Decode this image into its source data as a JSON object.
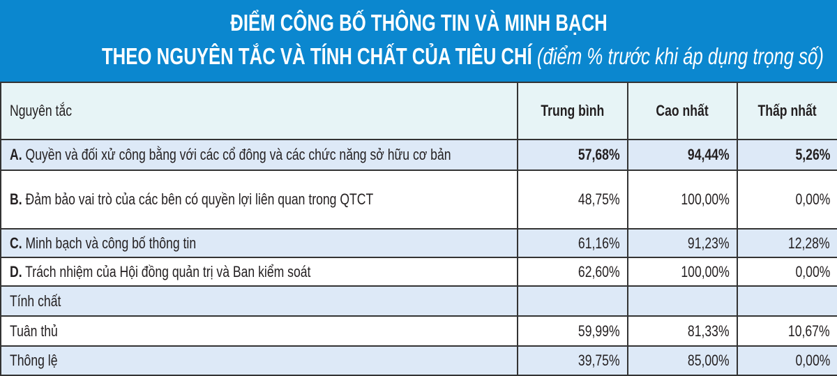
{
  "title": {
    "line1": "ĐIỂM CÔNG BỐ THÔNG TIN VÀ MINH BẠCH",
    "line2": "THEO NGUYÊN TẮC VÀ TÍNH CHẤT CỦA TIÊU CHÍ",
    "line2_note": "(điểm % trước khi áp dụng trọng số)"
  },
  "colors": {
    "title_bg": "#0b87cf",
    "header_bg": "#e7f4f6",
    "stripe": "#dde9f7"
  },
  "table": {
    "headers": [
      "Nguyên tắc",
      "Trung bình",
      "Cao nhất",
      "Thấp nhất"
    ],
    "rows": [
      {
        "prefix": "A.",
        "label": "Quyền và đối xử công bằng với các cổ đông và các chức năng sở hữu cơ bản",
        "avg": "57,68%",
        "max": "94,44%",
        "min": "5,26%"
      },
      {
        "prefix": "B.",
        "label": "Đảm bảo vai trò của các bên có quyền lợi liên quan trong QTCT",
        "avg": "48,75%",
        "max": "100,00%",
        "min": "0,00%"
      },
      {
        "prefix": "C.",
        "label": "Minh bạch và công bố thông tin",
        "avg": "61,16%",
        "max": "91,23%",
        "min": "12,28%"
      },
      {
        "prefix": "D.",
        "label": "Trách nhiệm của Hội đồng quản trị và Ban kiểm soát",
        "avg": "62,60%",
        "max": "100,00%",
        "min": "0,00%"
      },
      {
        "prefix": "",
        "label": "Tính chất",
        "avg": "",
        "max": "",
        "min": ""
      },
      {
        "prefix": "",
        "label": "Tuân thủ",
        "avg": "59,99%",
        "max": "81,33%",
        "min": "10,67%"
      },
      {
        "prefix": "",
        "label": "Thông lệ",
        "avg": "39,75%",
        "max": "85,00%",
        "min": "0,00%"
      }
    ]
  }
}
